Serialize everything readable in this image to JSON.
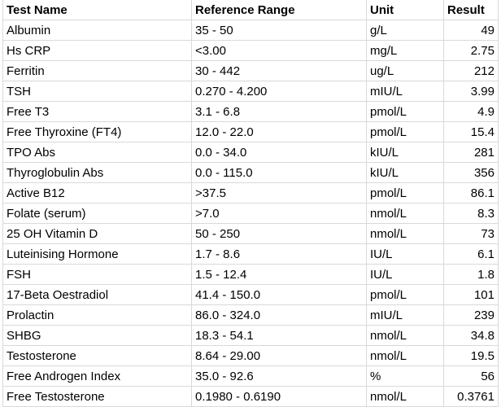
{
  "headers": [
    "Test Name",
    "Reference Range",
    "Unit",
    "Result"
  ],
  "rows": [
    [
      "Albumin",
      "35 - 50",
      "g/L",
      "49"
    ],
    [
      "Hs CRP",
      "<3.00",
      "mg/L",
      "2.75"
    ],
    [
      "Ferritin",
      "30 - 442",
      "ug/L",
      "212"
    ],
    [
      "TSH",
      "0.270 - 4.200",
      "mIU/L",
      "3.99"
    ],
    [
      "Free T3",
      "3.1 - 6.8",
      "pmol/L",
      "4.9"
    ],
    [
      "Free Thyroxine (FT4)",
      "12.0 - 22.0",
      "pmol/L",
      "15.4"
    ],
    [
      "TPO Abs",
      "0.0 - 34.0",
      "kIU/L",
      "281"
    ],
    [
      "Thyroglobulin Abs",
      "0.0 - 115.0",
      "kIU/L",
      "356"
    ],
    [
      "Active B12",
      ">37.5",
      "pmol/L",
      "86.1"
    ],
    [
      "Folate (serum)",
      ">7.0",
      "nmol/L",
      "8.3"
    ],
    [
      "25 OH Vitamin D",
      "50 - 250",
      "nmol/L",
      "73"
    ],
    [
      "Luteinising Hormone",
      "1.7 - 8.6",
      "IU/L",
      "6.1"
    ],
    [
      "FSH",
      "1.5 - 12.4",
      "IU/L",
      "1.8"
    ],
    [
      "17-Beta Oestradiol",
      "41.4 - 150.0",
      "pmol/L",
      "101"
    ],
    [
      "Prolactin",
      "86.0 - 324.0",
      "mIU/L",
      "239"
    ],
    [
      "SHBG",
      "18.3 - 54.1",
      "nmol/L",
      "34.8"
    ],
    [
      "Testosterone",
      "8.64 - 29.00",
      "nmol/L",
      "19.5"
    ],
    [
      "Free Androgen Index",
      "35.0 - 92.6",
      "%",
      "56"
    ],
    [
      "Free Testosterone",
      "0.1980 - 0.6190",
      "nmol/L",
      "0.3761"
    ]
  ]
}
